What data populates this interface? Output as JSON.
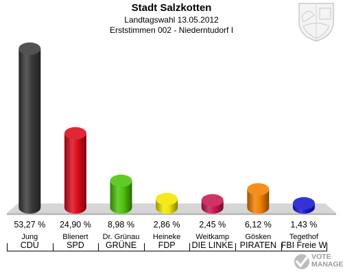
{
  "chart_data": {
    "type": "bar",
    "title": "Stadt Salzkotten",
    "subtitle_1": "Landtagswahl 13.05.2012",
    "subtitle_2": "Erststimmen 002 - Niederntudorf I",
    "categories": [
      "CDU",
      "SPD",
      "GRÜNE",
      "FDP",
      "DIE LINKE",
      "PIRATEN",
      "FBI Freie Wähler"
    ],
    "candidates": [
      "Jung",
      "Blienert",
      "Dr. Grünau",
      "Heineke",
      "Weitkamp",
      "Gösken",
      "Tegethof"
    ],
    "values": [
      53.27,
      24.9,
      8.98,
      2.86,
      2.45,
      6.12,
      1.43
    ],
    "value_labels": [
      "53,27 %",
      "24,90 %",
      "8,98 %",
      "2,86 %",
      "2,45 %",
      "6,12 %",
      "1,43 %"
    ],
    "colors": [
      "#3a3a3a",
      "#dd0a1b",
      "#4cc30a",
      "#f2e600",
      "#c8174f",
      "#f47f00",
      "#1818d0"
    ],
    "ylim": [
      0,
      53.27
    ],
    "grid": false
  },
  "watermark": {
    "line1": "VOTE",
    "line2": "MANAGER"
  },
  "crest_icon": "coat-of-arms-icon"
}
